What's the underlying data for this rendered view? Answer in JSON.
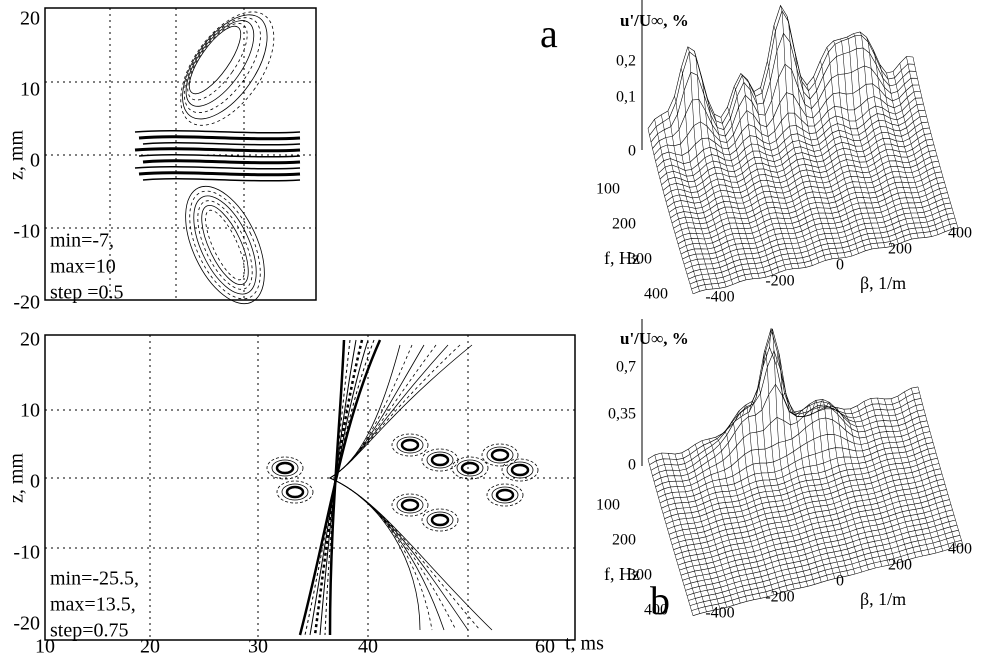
{
  "panel_a": {
    "label": "a",
    "contour": {
      "yticks": [
        "20",
        "10",
        "0",
        "-10",
        "-20"
      ],
      "ylabel": "z, mm",
      "stats": [
        "min=-7,",
        "max=10",
        "step =0.5"
      ]
    },
    "surface": {
      "zlabel": "u'/U∞, %",
      "zticks": [
        "0,2",
        "0,1",
        "0"
      ],
      "flabel": "f, Hz",
      "fticks": [
        "100",
        "200",
        "300",
        "400"
      ],
      "blabel": "β, 1/m",
      "bticks": [
        "-400",
        "-200",
        "0",
        "200",
        "400"
      ]
    }
  },
  "panel_b": {
    "label": "b",
    "contour": {
      "yticks": [
        "20",
        "10",
        "0",
        "-10",
        "-20"
      ],
      "ylabel": "z, mm",
      "xticks": [
        "10",
        "20",
        "30",
        "40",
        "60"
      ],
      "xlabel": "t, ms",
      "stats": [
        "min=-25.5,",
        "max=13.5,",
        "step=0.75"
      ]
    },
    "surface": {
      "zlabel": "u'/U∞, %",
      "zticks": [
        "0,7",
        "0,35",
        "0"
      ],
      "flabel": "f, Hz",
      "fticks": [
        "100",
        "200",
        "300",
        "400"
      ],
      "blabel": "β, 1/m",
      "bticks": [
        "-400",
        "-200",
        "0",
        "200",
        "400"
      ]
    }
  }
}
